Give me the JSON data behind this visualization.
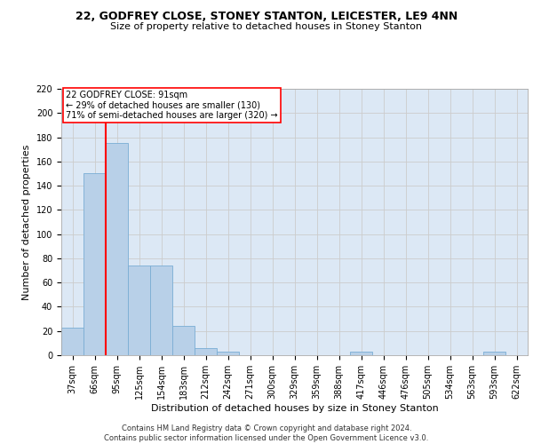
{
  "title1": "22, GODFREY CLOSE, STONEY STANTON, LEICESTER, LE9 4NN",
  "title2": "Size of property relative to detached houses in Stoney Stanton",
  "xlabel": "Distribution of detached houses by size in Stoney Stanton",
  "ylabel": "Number of detached properties",
  "categories": [
    "37sqm",
    "66sqm",
    "95sqm",
    "125sqm",
    "154sqm",
    "183sqm",
    "212sqm",
    "242sqm",
    "271sqm",
    "300sqm",
    "329sqm",
    "359sqm",
    "388sqm",
    "417sqm",
    "446sqm",
    "476sqm",
    "505sqm",
    "534sqm",
    "563sqm",
    "593sqm",
    "622sqm"
  ],
  "values": [
    23,
    150,
    175,
    74,
    74,
    24,
    6,
    3,
    0,
    0,
    0,
    0,
    0,
    3,
    0,
    0,
    0,
    0,
    0,
    3,
    0
  ],
  "bar_color": "#b8d0e8",
  "bar_edge_color": "#7aadd4",
  "grid_color": "#cccccc",
  "background_color": "#dce8f5",
  "vline_color": "red",
  "vline_position": 1.5,
  "annotation_text": "22 GODFREY CLOSE: 91sqm\n← 29% of detached houses are smaller (130)\n71% of semi-detached houses are larger (320) →",
  "annotation_box_color": "white",
  "annotation_box_edge": "red",
  "footer": "Contains HM Land Registry data © Crown copyright and database right 2024.\nContains public sector information licensed under the Open Government Licence v3.0.",
  "ylim": [
    0,
    220
  ],
  "yticks": [
    0,
    20,
    40,
    60,
    80,
    100,
    120,
    140,
    160,
    180,
    200,
    220
  ],
  "title1_fontsize": 9,
  "title2_fontsize": 8,
  "ylabel_fontsize": 8,
  "xlabel_fontsize": 8,
  "tick_fontsize": 7,
  "footer_fontsize": 6
}
